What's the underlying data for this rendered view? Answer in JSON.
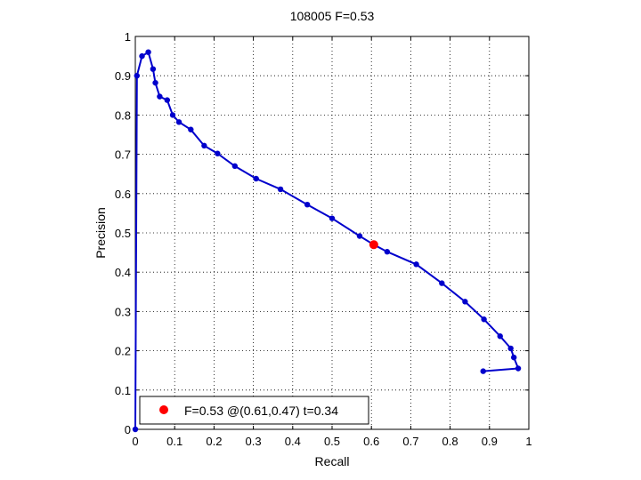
{
  "chart_data": {
    "type": "line",
    "title": "108005 F=0.53",
    "xlabel": "Recall",
    "ylabel": "Precision",
    "xlim": [
      0,
      1
    ],
    "ylim": [
      0,
      1
    ],
    "xticks": [
      0,
      0.1,
      0.2,
      0.3,
      0.4,
      0.5,
      0.6,
      0.7,
      0.8,
      0.9,
      1
    ],
    "xtick_labels": [
      "0",
      "0.1",
      "0.2",
      "0.3",
      "0.4",
      "0.5",
      "0.6",
      "0.7",
      "0.8",
      "0.9",
      "1"
    ],
    "yticks": [
      0,
      0.1,
      0.2,
      0.3,
      0.4,
      0.5,
      0.6,
      0.7,
      0.8,
      0.9,
      1
    ],
    "ytick_labels": [
      "0",
      "0.1",
      "0.2",
      "0.3",
      "0.4",
      "0.5",
      "0.6",
      "0.7",
      "0.8",
      "0.9",
      "1"
    ],
    "grid": true,
    "legend_position": "bottom-left",
    "series": [
      {
        "color": "#0000cc",
        "x": [
          0.0,
          0.004,
          0.017,
          0.033,
          0.045,
          0.051,
          0.062,
          0.081,
          0.095,
          0.111,
          0.141,
          0.175,
          0.209,
          0.253,
          0.307,
          0.369,
          0.437,
          0.5,
          0.57,
          0.606,
          0.64,
          0.714,
          0.779,
          0.838,
          0.886,
          0.927,
          0.954,
          0.962,
          0.973,
          0.884
        ],
        "y": [
          0.0,
          0.9,
          0.95,
          0.96,
          0.917,
          0.882,
          0.847,
          0.838,
          0.8,
          0.782,
          0.763,
          0.722,
          0.702,
          0.67,
          0.638,
          0.611,
          0.572,
          0.537,
          0.492,
          0.47,
          0.452,
          0.42,
          0.372,
          0.325,
          0.28,
          0.237,
          0.206,
          0.183,
          0.155,
          0.148
        ]
      }
    ],
    "highlight": {
      "x": 0.606,
      "y": 0.47,
      "color": "#ff0000",
      "label": "F=0.53 @(0.61,0.47) t=0.34"
    }
  }
}
